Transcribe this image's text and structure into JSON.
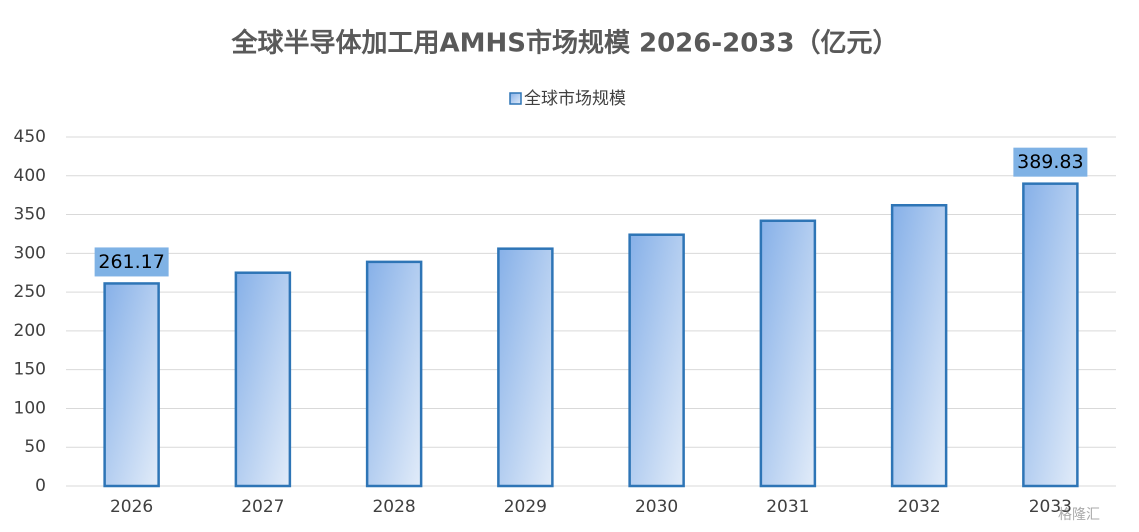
{
  "chart_data": {
    "type": "bar",
    "title": "全球半导体加工用AMHS市场规模 2026-2033（亿元）",
    "categories": [
      "2026",
      "2027",
      "2028",
      "2029",
      "2030",
      "2031",
      "2032",
      "2033"
    ],
    "series": [
      {
        "name": "全球市场规模",
        "color": "#2e75b6",
        "values": [
          261.17,
          275,
          289,
          306,
          324,
          342,
          362,
          389.83
        ]
      }
    ],
    "value_labels": [
      "261.17",
      null,
      null,
      null,
      null,
      null,
      null,
      "389.83"
    ],
    "ylim": [
      0,
      450
    ],
    "yticks": [
      0,
      50,
      100,
      150,
      200,
      250,
      300,
      350,
      400,
      450
    ],
    "grid": true,
    "legend": "top",
    "watermark": "格隆汇"
  }
}
